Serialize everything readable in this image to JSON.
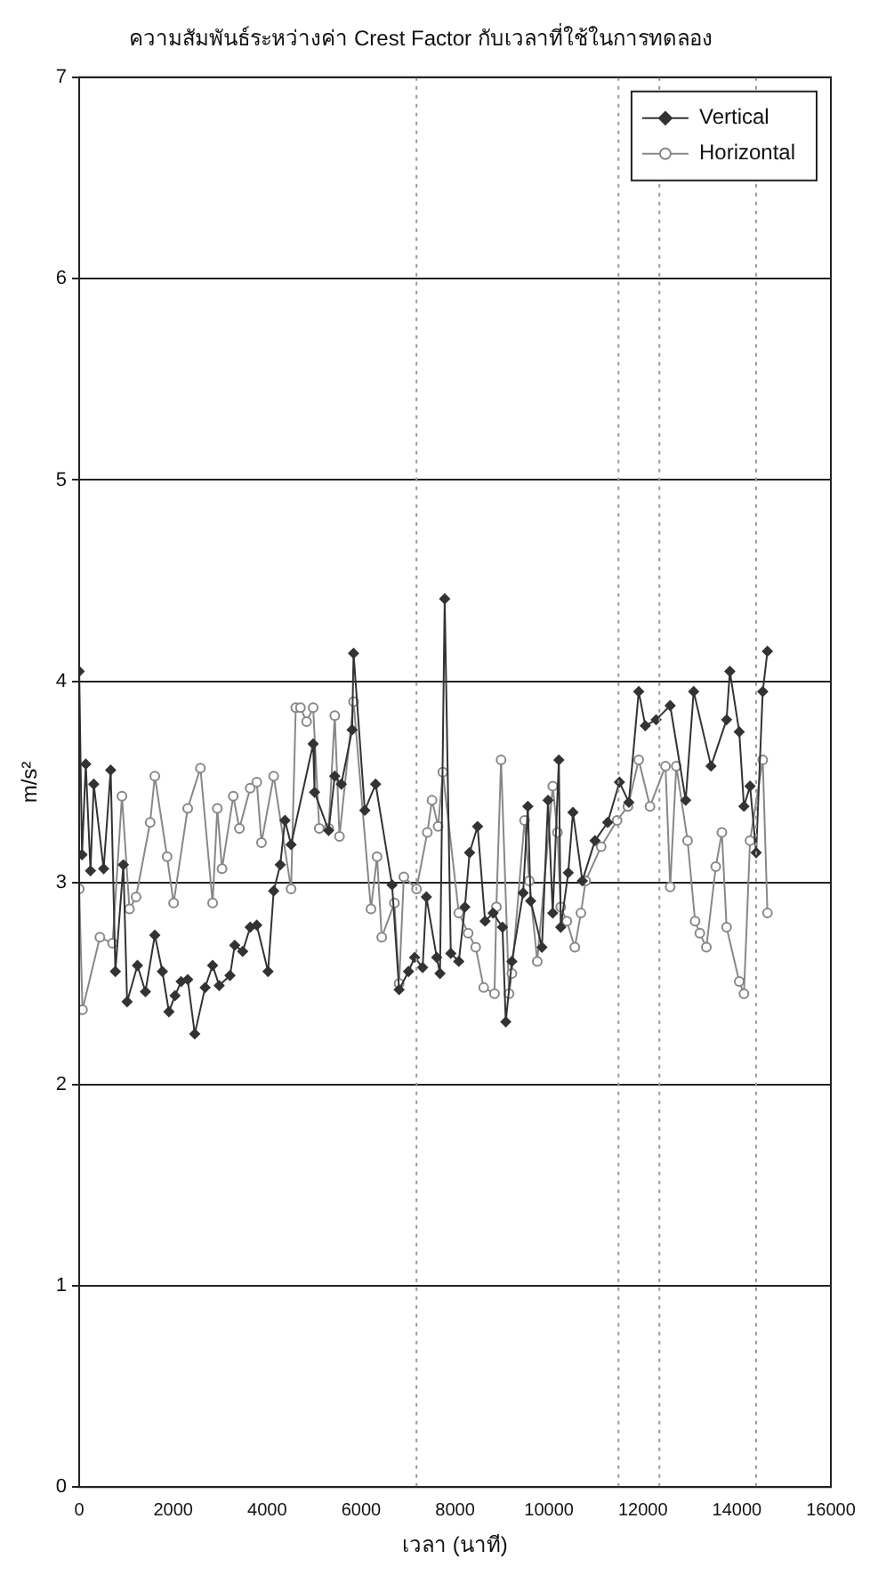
{
  "chart_data": {
    "type": "line",
    "title": "ความสัมพันธ์ระหว่างค่า Crest Factor กับเวลาที่ใช้ในการทดลอง",
    "xlabel": "เวลา (นาที)",
    "ylabel": "m/s²",
    "series": [
      {
        "name": "Vertical",
        "color": "#333333",
        "marker": "diamond",
        "x": [
          0,
          60,
          140,
          240,
          310,
          520,
          670,
          770,
          940,
          1020,
          1240,
          1410,
          1610,
          1770,
          1910,
          2040,
          2170,
          2310,
          2460,
          2680,
          2840,
          2980,
          3210,
          3310,
          3480,
          3640,
          3780,
          4020,
          4140,
          4280,
          4380,
          4510,
          4980,
          5010,
          5310,
          5440,
          5580,
          5810,
          5840,
          6080,
          6310,
          6660,
          6810,
          7010,
          7140,
          7310,
          7390,
          7610,
          7680,
          7780,
          7910,
          8080,
          8210,
          8310,
          8480,
          8640,
          8810,
          9010,
          9080,
          9210,
          9450,
          9550,
          9610,
          9850,
          9980,
          10080,
          10210,
          10250,
          10410,
          10510,
          10710,
          10980,
          11250,
          11500,
          11700,
          11910,
          12050,
          12280,
          12580,
          12910,
          13080,
          13450,
          13780,
          13850,
          14050,
          14150,
          14280,
          14410,
          14550,
          14650
        ],
        "values": [
          4.05,
          3.14,
          3.59,
          3.06,
          3.49,
          3.07,
          3.56,
          2.56,
          3.09,
          2.41,
          2.59,
          2.46,
          2.74,
          2.56,
          2.36,
          2.44,
          2.51,
          2.52,
          2.25,
          2.48,
          2.59,
          2.49,
          2.54,
          2.69,
          2.66,
          2.78,
          2.79,
          2.56,
          2.96,
          3.09,
          3.31,
          3.19,
          3.69,
          3.45,
          3.26,
          3.53,
          3.49,
          3.76,
          4.14,
          3.36,
          3.49,
          2.99,
          2.47,
          2.56,
          2.63,
          2.58,
          2.93,
          2.63,
          2.55,
          4.41,
          2.65,
          2.61,
          2.88,
          3.15,
          3.28,
          2.81,
          2.85,
          2.78,
          2.31,
          2.61,
          2.95,
          3.38,
          2.91,
          2.68,
          3.41,
          2.85,
          3.61,
          2.78,
          3.05,
          3.35,
          3.01,
          3.21,
          3.3,
          3.5,
          3.4,
          3.95,
          3.78,
          3.81,
          3.88,
          3.41,
          3.95,
          3.58,
          3.81,
          4.05,
          3.75,
          3.38,
          3.48,
          3.15,
          3.95,
          4.15
        ]
      },
      {
        "name": "Horizontal",
        "color": "#888888",
        "marker": "circle",
        "x": [
          0,
          70,
          440,
          710,
          910,
          1070,
          1210,
          1510,
          1610,
          1870,
          2010,
          2310,
          2580,
          2840,
          2940,
          3040,
          3280,
          3410,
          3640,
          3780,
          3880,
          4140,
          4510,
          4610,
          4710,
          4840,
          4980,
          5110,
          5310,
          5440,
          5540,
          5840,
          6210,
          6340,
          6440,
          6710,
          6810,
          6910,
          7180,
          7410,
          7510,
          7640,
          7740,
          8080,
          8280,
          8440,
          8610,
          8840,
          8880,
          8980,
          9150,
          9210,
          9480,
          9580,
          9750,
          10080,
          10180,
          10250,
          10380,
          10550,
          10680,
          10780,
          11110,
          11450,
          11680,
          11910,
          12150,
          12480,
          12580,
          12710,
          12950,
          13110,
          13210,
          13350,
          13550,
          13680,
          13780,
          14050,
          14150,
          14280,
          14550,
          14650
        ],
        "values": [
          2.97,
          2.37,
          2.73,
          2.7,
          3.43,
          2.87,
          2.93,
          3.3,
          3.53,
          3.13,
          2.9,
          3.37,
          3.57,
          2.9,
          3.37,
          3.07,
          3.43,
          3.27,
          3.47,
          3.5,
          3.2,
          3.53,
          2.97,
          3.87,
          3.87,
          3.8,
          3.87,
          3.27,
          3.27,
          3.83,
          3.23,
          3.9,
          2.87,
          3.13,
          2.73,
          2.9,
          2.5,
          3.03,
          2.97,
          3.25,
          3.41,
          3.28,
          3.55,
          2.85,
          2.75,
          2.68,
          2.48,
          2.45,
          2.88,
          3.61,
          2.45,
          2.55,
          3.31,
          3.01,
          2.61,
          3.48,
          3.25,
          2.88,
          2.81,
          2.68,
          2.85,
          3.01,
          3.18,
          3.31,
          3.38,
          3.61,
          3.38,
          3.58,
          2.98,
          3.58,
          3.21,
          2.81,
          2.75,
          2.68,
          3.08,
          3.25,
          2.78,
          2.51,
          2.45,
          3.21,
          3.61,
          2.85
        ]
      }
    ],
    "xlim": [
      0,
      16000
    ],
    "xticks": [
      0,
      2000,
      4000,
      6000,
      8000,
      10000,
      12000,
      14000,
      16000
    ],
    "ylim": [
      0,
      7
    ],
    "yticks": [
      0,
      1,
      2,
      3,
      4,
      5,
      6,
      7
    ],
    "grid": "y",
    "legend": "top right",
    "ref_lines": [
      {
        "axis": "x",
        "value": 7180,
        "color": "#999999",
        "line_style": "dotted"
      },
      {
        "axis": "x",
        "value": 11480,
        "color": "#999999",
        "line_style": "dotted"
      },
      {
        "axis": "x",
        "value": 12350,
        "color": "#999999",
        "line_style": "dotted"
      },
      {
        "axis": "x",
        "value": 14410,
        "color": "#999999",
        "line_style": "dotted"
      }
    ]
  }
}
